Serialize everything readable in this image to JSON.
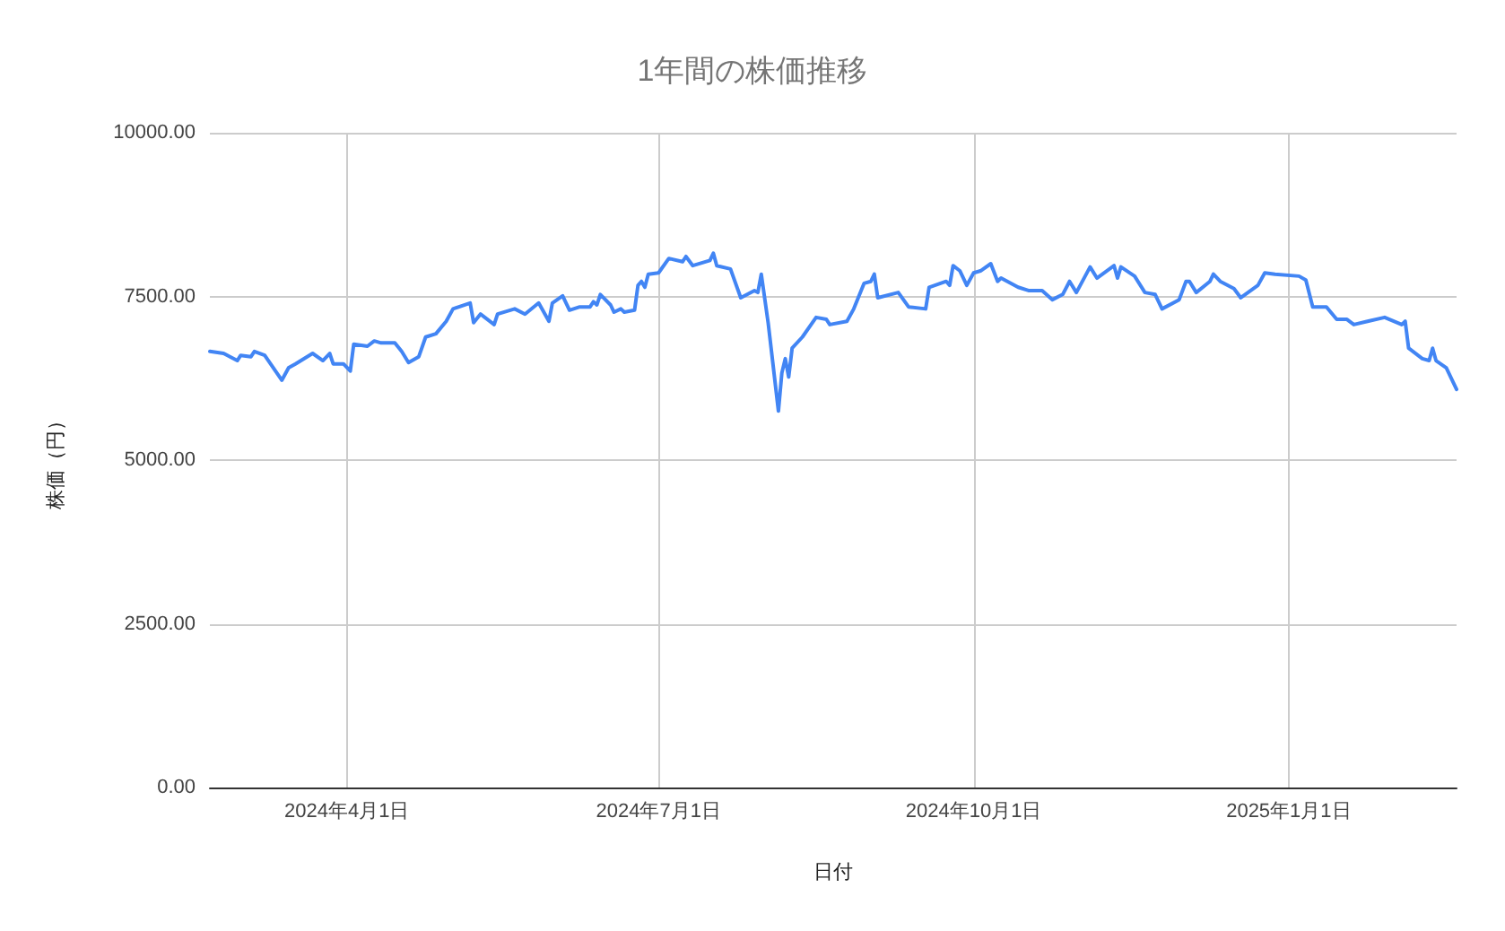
{
  "chart_data": {
    "type": "line",
    "title": "1年間の株価推移",
    "xlabel": "日付",
    "ylabel": "株価（円）",
    "x": [
      "2024-02-21",
      "2024-02-25",
      "2024-02-29",
      "2024-03-01",
      "2024-03-04",
      "2024-03-05",
      "2024-03-08",
      "2024-03-13",
      "2024-03-15",
      "2024-03-17",
      "2024-03-22",
      "2024-03-25",
      "2024-03-27",
      "2024-03-28",
      "2024-03-31",
      "2024-04-02",
      "2024-04-03",
      "2024-04-07",
      "2024-04-09",
      "2024-04-11",
      "2024-04-15",
      "2024-04-17",
      "2024-04-19",
      "2024-04-22",
      "2024-04-24",
      "2024-04-27",
      "2024-04-30",
      "2024-05-02",
      "2024-05-07",
      "2024-05-08",
      "2024-05-10",
      "2024-05-14",
      "2024-05-15",
      "2024-05-20",
      "2024-05-23",
      "2024-05-27",
      "2024-05-30",
      "2024-05-31",
      "2024-06-03",
      "2024-06-05",
      "2024-06-08",
      "2024-06-11",
      "2024-06-12",
      "2024-06-13",
      "2024-06-14",
      "2024-06-17",
      "2024-06-18",
      "2024-06-20",
      "2024-06-21",
      "2024-06-24",
      "2024-06-25",
      "2024-06-26",
      "2024-06-27",
      "2024-06-28",
      "2024-07-01",
      "2024-07-04",
      "2024-07-08",
      "2024-07-09",
      "2024-07-11",
      "2024-07-16",
      "2024-07-17",
      "2024-07-18",
      "2024-07-22",
      "2024-07-25",
      "2024-07-29",
      "2024-07-30",
      "2024-07-31",
      "2024-08-02",
      "2024-08-05",
      "2024-08-06",
      "2024-08-07",
      "2024-08-08",
      "2024-08-09",
      "2024-08-12",
      "2024-08-16",
      "2024-08-19",
      "2024-08-20",
      "2024-08-25",
      "2024-08-27",
      "2024-08-30",
      "2024-09-01",
      "2024-09-02",
      "2024-09-03",
      "2024-09-09",
      "2024-09-12",
      "2024-09-17",
      "2024-09-18",
      "2024-09-23",
      "2024-09-24",
      "2024-09-25",
      "2024-09-27",
      "2024-09-29",
      "2024-10-01",
      "2024-10-03",
      "2024-10-06",
      "2024-10-08",
      "2024-10-09",
      "2024-10-14",
      "2024-10-17",
      "2024-10-21",
      "2024-10-24",
      "2024-10-27",
      "2024-10-29",
      "2024-10-31",
      "2024-11-04",
      "2024-11-06",
      "2024-11-11",
      "2024-11-12",
      "2024-11-13",
      "2024-11-17",
      "2024-11-20",
      "2024-11-23",
      "2024-11-25",
      "2024-11-30",
      "2024-12-02",
      "2024-12-03",
      "2024-12-05",
      "2024-12-09",
      "2024-12-10",
      "2024-12-12",
      "2024-12-16",
      "2024-12-18",
      "2024-12-23",
      "2024-12-25",
      "2024-12-28",
      "2025-01-04",
      "2025-01-06",
      "2025-01-08",
      "2025-01-12",
      "2025-01-15",
      "2025-01-18",
      "2025-01-20",
      "2025-01-24",
      "2025-01-29",
      "2025-02-03",
      "2025-02-04",
      "2025-02-05",
      "2025-02-09",
      "2025-02-11",
      "2025-02-12",
      "2025-02-13",
      "2025-02-16",
      "2025-02-19"
    ],
    "series": [
      {
        "color": "#4285f4",
        "values": [
          6660,
          6630,
          6520,
          6600,
          6580,
          6660,
          6600,
          6220,
          6410,
          6470,
          6630,
          6520,
          6630,
          6470,
          6470,
          6360,
          6770,
          6740,
          6820,
          6790,
          6790,
          6660,
          6490,
          6580,
          6880,
          6930,
          7120,
          7310,
          7400,
          7100,
          7230,
          7070,
          7230,
          7310,
          7230,
          7400,
          7120,
          7400,
          7510,
          7290,
          7340,
          7340,
          7420,
          7370,
          7530,
          7370,
          7260,
          7310,
          7260,
          7290,
          7670,
          7730,
          7640,
          7840,
          7860,
          8080,
          8030,
          8110,
          7970,
          8050,
          8160,
          7970,
          7920,
          7480,
          7590,
          7560,
          7840,
          7100,
          5750,
          6330,
          6550,
          6270,
          6710,
          6880,
          7180,
          7150,
          7070,
          7120,
          7310,
          7700,
          7730,
          7840,
          7480,
          7560,
          7340,
          7310,
          7640,
          7730,
          7670,
          7970,
          7890,
          7670,
          7860,
          7890,
          8000,
          7730,
          7780,
          7640,
          7590,
          7590,
          7450,
          7530,
          7730,
          7560,
          7950,
          7780,
          7970,
          7780,
          7950,
          7810,
          7560,
          7530,
          7310,
          7450,
          7730,
          7730,
          7560,
          7730,
          7840,
          7730,
          7620,
          7480,
          7670,
          7860,
          7840,
          7810,
          7750,
          7340,
          7340,
          7150,
          7150,
          7070,
          7120,
          7180,
          7070,
          7120,
          6710,
          6550,
          6520,
          6710,
          6520,
          6410,
          6080
        ]
      }
    ],
    "xlim": [
      "2024-02-21",
      "2025-02-19"
    ],
    "xticks": [
      {
        "value": "2024-04-01",
        "label": "2024年4月1日"
      },
      {
        "value": "2024-07-01",
        "label": "2024年7月1日"
      },
      {
        "value": "2024-10-01",
        "label": "2024年10月1日"
      },
      {
        "value": "2025-01-01",
        "label": "2025年1月1日"
      }
    ],
    "ylim": [
      0,
      10000
    ],
    "yticks": [
      {
        "value": 0,
        "label": "0.00"
      },
      {
        "value": 2500,
        "label": "2500.00"
      },
      {
        "value": 5000,
        "label": "5000.00"
      },
      {
        "value": 7500,
        "label": "7500.00"
      },
      {
        "value": 10000,
        "label": "10000.00"
      }
    ],
    "grid": true,
    "marker": "none",
    "line_style": "solid"
  }
}
